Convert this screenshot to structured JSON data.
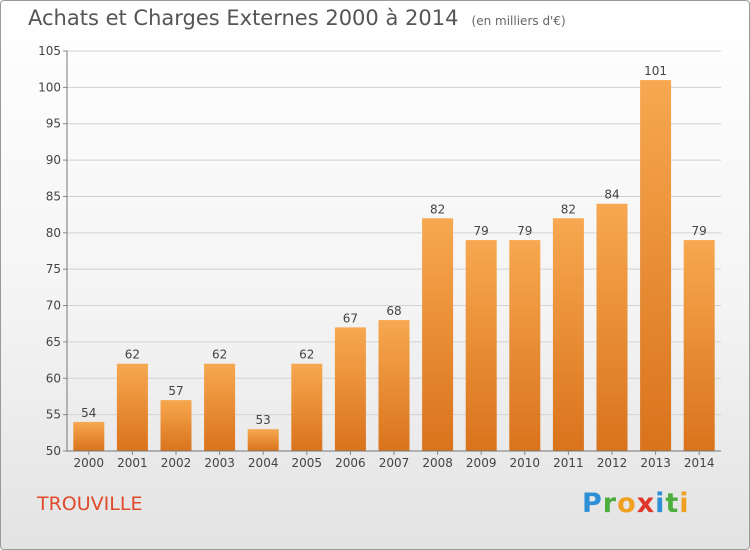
{
  "header": {
    "title": "Achats et Charges Externes 2000 à 2014",
    "subtitle": "(en milliers d'€)"
  },
  "footer": {
    "town": "TROUVILLE",
    "logo_letters": [
      {
        "char": "P",
        "color": "#2d8fd6"
      },
      {
        "char": "r",
        "color": "#4cae3c"
      },
      {
        "char": "o",
        "color": "#f0a020"
      },
      {
        "char": "x",
        "color": "#e0352a"
      },
      {
        "char": "i",
        "color": "#2d8fd6"
      },
      {
        "char": "t",
        "color": "#4cae3c"
      },
      {
        "char": "i",
        "color": "#f0a020"
      }
    ]
  },
  "chart_data": {
    "type": "bar",
    "title": "Achats et Charges Externes 2000 à 2014",
    "subtitle": "(en milliers d'€)",
    "xlabel": "",
    "ylabel": "",
    "categories": [
      "2000",
      "2001",
      "2002",
      "2003",
      "2004",
      "2005",
      "2006",
      "2007",
      "2008",
      "2009",
      "2010",
      "2011",
      "2012",
      "2013",
      "2014"
    ],
    "values": [
      54,
      62,
      57,
      62,
      53,
      62,
      67,
      68,
      82,
      79,
      79,
      82,
      84,
      101,
      79
    ],
    "ylim": [
      50,
      105
    ],
    "yticks": [
      50,
      55,
      60,
      65,
      70,
      75,
      80,
      85,
      90,
      95,
      100,
      105
    ],
    "grid": true,
    "bar_color": "#f08c30"
  }
}
